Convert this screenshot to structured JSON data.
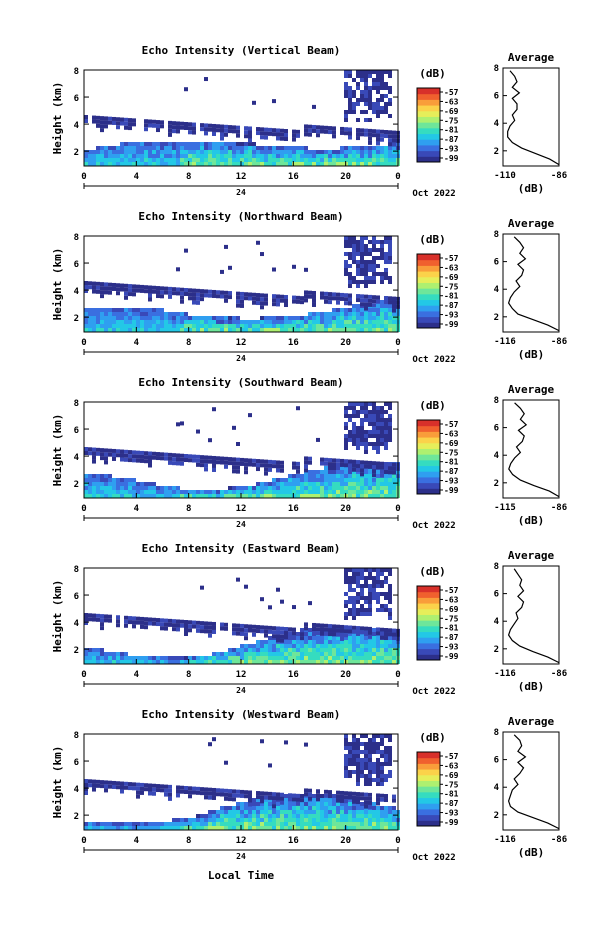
{
  "xlabel": "Local Time",
  "colorbar": {
    "unit": "(dB)",
    "ticks": [
      "-57",
      "-63",
      "-69",
      "-75",
      "-81",
      "-87",
      "-93",
      "-99"
    ],
    "colors": [
      "#2c2f8a",
      "#3949b8",
      "#3a6fe0",
      "#2f9ff0",
      "#23c8e6",
      "#35dcc0",
      "#6ee69a",
      "#aef070",
      "#e6ee5a",
      "#fbd24a",
      "#f99d3a",
      "#f0602e",
      "#d8302a"
    ]
  },
  "chart_data": [
    {
      "type": "heatmap",
      "title": "Echo Intensity (Vertical Beam)",
      "ylabel": "Height (km)",
      "x_ticks": [
        "0",
        "4",
        "8",
        "12",
        "16",
        "20",
        "0"
      ],
      "date_label": "24",
      "month_label": "Oct 2022",
      "yticks": [
        "2",
        "4",
        "6",
        "8"
      ],
      "ylim": [
        0.9,
        8.0
      ],
      "xlim": [
        0,
        24
      ],
      "avg_profile": {
        "title": "Average",
        "xlabel": "(dB)",
        "x_ticks": [
          "-110",
          "-86"
        ],
        "xlim": [
          -110,
          -86
        ],
        "yticks": [
          "2",
          "4",
          "6",
          "8"
        ],
        "ylim": [
          0.9,
          8.0
        ],
        "heights": [
          1.0,
          1.4,
          1.8,
          2.2,
          2.6,
          3.0,
          3.4,
          3.8,
          4.2,
          4.6,
          5.0,
          5.4,
          5.8,
          6.2,
          6.6,
          7.0,
          7.4,
          7.8
        ],
        "values": [
          -86,
          -90,
          -96,
          -102,
          -106,
          -108,
          -108,
          -107,
          -105,
          -106,
          -104,
          -104,
          -106,
          -103,
          -106,
          -104,
          -105,
          -107
        ]
      }
    },
    {
      "type": "heatmap",
      "title": "Echo Intensity (Northward Beam)",
      "ylabel": "Height (km)",
      "x_ticks": [
        "0",
        "4",
        "8",
        "12",
        "16",
        "20",
        "0"
      ],
      "date_label": "24",
      "month_label": "Oct 2022",
      "yticks": [
        "2",
        "4",
        "6",
        "8"
      ],
      "ylim": [
        0.9,
        8.0
      ],
      "xlim": [
        0,
        24
      ],
      "avg_profile": {
        "title": "Average",
        "xlabel": "(dB)",
        "x_ticks": [
          "-116",
          "-86"
        ],
        "xlim": [
          -116,
          -86
        ],
        "yticks": [
          "2",
          "4",
          "6",
          "8"
        ],
        "ylim": [
          0.9,
          8.0
        ],
        "heights": [
          1.0,
          1.4,
          1.8,
          2.2,
          2.6,
          3.0,
          3.4,
          3.8,
          4.2,
          4.6,
          5.0,
          5.4,
          5.8,
          6.2,
          6.6,
          7.0,
          7.4,
          7.8
        ],
        "values": [
          -86,
          -92,
          -100,
          -108,
          -111,
          -113,
          -112,
          -110,
          -107,
          -109,
          -106,
          -105,
          -108,
          -104,
          -107,
          -105,
          -107,
          -110
        ]
      }
    },
    {
      "type": "heatmap",
      "title": "Echo Intensity (Southward Beam)",
      "ylabel": "Height (km)",
      "x_ticks": [
        "0",
        "4",
        "8",
        "12",
        "16",
        "20",
        "0"
      ],
      "date_label": "24",
      "month_label": "Oct 2022",
      "yticks": [
        "2",
        "4",
        "6",
        "8"
      ],
      "ylim": [
        0.9,
        8.0
      ],
      "xlim": [
        0,
        24
      ],
      "avg_profile": {
        "title": "Average",
        "xlabel": "(dB)",
        "x_ticks": [
          "-115",
          "-86"
        ],
        "xlim": [
          -115,
          -86
        ],
        "yticks": [
          "2",
          "4",
          "6",
          "8"
        ],
        "ylim": [
          0.9,
          8.0
        ],
        "heights": [
          1.0,
          1.4,
          1.8,
          2.2,
          2.6,
          3.0,
          3.4,
          3.8,
          4.2,
          4.6,
          5.0,
          5.4,
          5.8,
          6.2,
          6.6,
          7.0,
          7.4,
          7.8
        ],
        "values": [
          -86,
          -91,
          -99,
          -106,
          -110,
          -112,
          -111,
          -109,
          -106,
          -108,
          -105,
          -104,
          -107,
          -103,
          -106,
          -104,
          -106,
          -109
        ]
      }
    },
    {
      "type": "heatmap",
      "title": "Echo Intensity (Eastward Beam)",
      "ylabel": "Height (km)",
      "x_ticks": [
        "0",
        "4",
        "8",
        "12",
        "16",
        "20",
        "0"
      ],
      "date_label": "24",
      "month_label": "Oct 2022",
      "yticks": [
        "2",
        "4",
        "6",
        "8"
      ],
      "ylim": [
        0.9,
        8.0
      ],
      "xlim": [
        0,
        24
      ],
      "avg_profile": {
        "title": "Average",
        "xlabel": "(dB)",
        "x_ticks": [
          "-116",
          "-86"
        ],
        "xlim": [
          -116,
          -86
        ],
        "yticks": [
          "2",
          "4",
          "6",
          "8"
        ],
        "ylim": [
          0.9,
          8.0
        ],
        "heights": [
          1.0,
          1.4,
          1.8,
          2.2,
          2.6,
          3.0,
          3.4,
          3.8,
          4.2,
          4.6,
          5.0,
          5.4,
          5.8,
          6.2,
          6.6,
          7.0,
          7.4,
          7.8
        ],
        "values": [
          -86,
          -92,
          -100,
          -107,
          -111,
          -113,
          -112,
          -110,
          -108,
          -109,
          -106,
          -105,
          -108,
          -105,
          -107,
          -106,
          -108,
          -110
        ]
      }
    },
    {
      "type": "heatmap",
      "title": "Echo Intensity (Westward Beam)",
      "ylabel": "Height (km)",
      "x_ticks": [
        "0",
        "4",
        "8",
        "12",
        "16",
        "20",
        "0"
      ],
      "date_label": "24",
      "month_label": "Oct 2022",
      "yticks": [
        "2",
        "4",
        "6",
        "8"
      ],
      "ylim": [
        0.9,
        8.0
      ],
      "xlim": [
        0,
        24
      ],
      "avg_profile": {
        "title": "Average",
        "xlabel": "(dB)",
        "x_ticks": [
          "-116",
          "-86"
        ],
        "xlim": [
          -116,
          -86
        ],
        "yticks": [
          "2",
          "4",
          "6",
          "8"
        ],
        "ylim": [
          0.9,
          8.0
        ],
        "heights": [
          1.0,
          1.4,
          1.8,
          2.2,
          2.6,
          3.0,
          3.4,
          3.8,
          4.2,
          4.6,
          5.0,
          5.4,
          5.8,
          6.2,
          6.6,
          7.0,
          7.4,
          7.8
        ],
        "values": [
          -86,
          -92,
          -100,
          -108,
          -112,
          -113,
          -112,
          -111,
          -108,
          -110,
          -107,
          -105,
          -108,
          -104,
          -108,
          -106,
          -107,
          -110
        ]
      }
    }
  ]
}
